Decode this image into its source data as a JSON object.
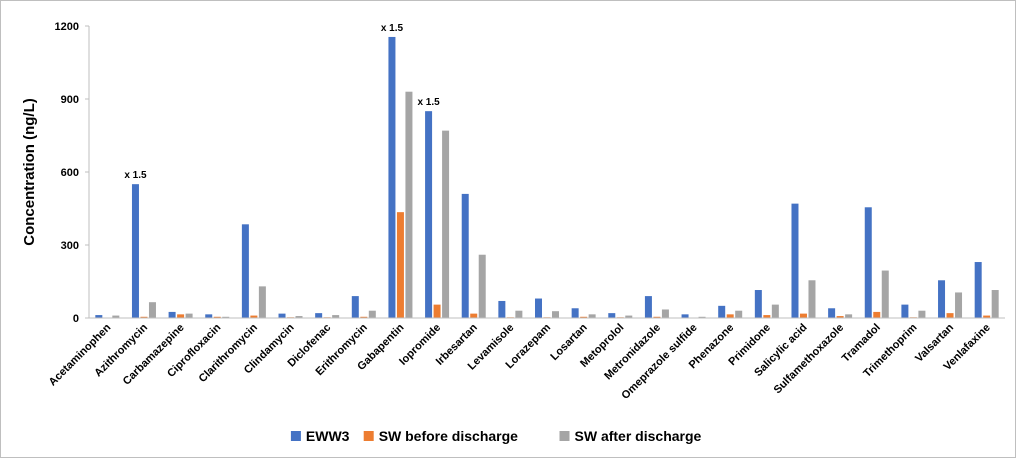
{
  "chart_data": {
    "type": "bar",
    "title": "",
    "xlabel": "",
    "ylabel": "Concentration (ng/L)",
    "ylim": [
      0,
      1200
    ],
    "yticks": [
      0,
      300,
      600,
      900,
      1200
    ],
    "grid": false,
    "legend_position": "bottom",
    "categories": [
      "Acetaminophen",
      "Azithromycin",
      "Carbamazepine",
      "Ciprofloxacin",
      "Clarithromycin",
      "Clindamycin",
      "Diclofenac",
      "Erithromycin",
      "Gabapentin",
      "Iopromide",
      "Irbesartan",
      "Levamisole",
      "Lorazepam",
      "Losartan",
      "Metoprolol",
      "Metronidazole",
      "Omeprazole sulfide",
      "Phenazone",
      "Primidone",
      "Salicylic acid",
      "Sulfamethoxazole",
      "Tramadol",
      "Trimethoprim",
      "Valsartan",
      "Venlafaxine"
    ],
    "series": [
      {
        "name": "EWW3",
        "color": "#4472C4",
        "values": [
          12,
          550,
          25,
          15,
          385,
          18,
          20,
          90,
          1155,
          850,
          510,
          70,
          80,
          40,
          20,
          90,
          15,
          50,
          115,
          470,
          40,
          455,
          55,
          155,
          230
        ]
      },
      {
        "name": "SW before discharge",
        "color": "#ED7D31",
        "values": [
          2,
          5,
          15,
          5,
          10,
          3,
          3,
          5,
          435,
          55,
          18,
          3,
          3,
          5,
          3,
          5,
          2,
          15,
          12,
          18,
          8,
          25,
          3,
          20,
          10
        ]
      },
      {
        "name": "SW after discharge",
        "color": "#A5A5A5",
        "values": [
          10,
          65,
          18,
          5,
          130,
          8,
          12,
          30,
          930,
          770,
          260,
          30,
          28,
          15,
          10,
          35,
          5,
          30,
          55,
          155,
          15,
          195,
          30,
          105,
          115
        ]
      }
    ],
    "annotations": [
      {
        "category": "Azithromycin",
        "series": "EWW3",
        "text": "x 1.5"
      },
      {
        "category": "Gabapentin",
        "series": "EWW3",
        "text": "x 1.5"
      },
      {
        "category": "Iopromide",
        "series": "EWW3",
        "text": "x 1.5"
      }
    ]
  }
}
